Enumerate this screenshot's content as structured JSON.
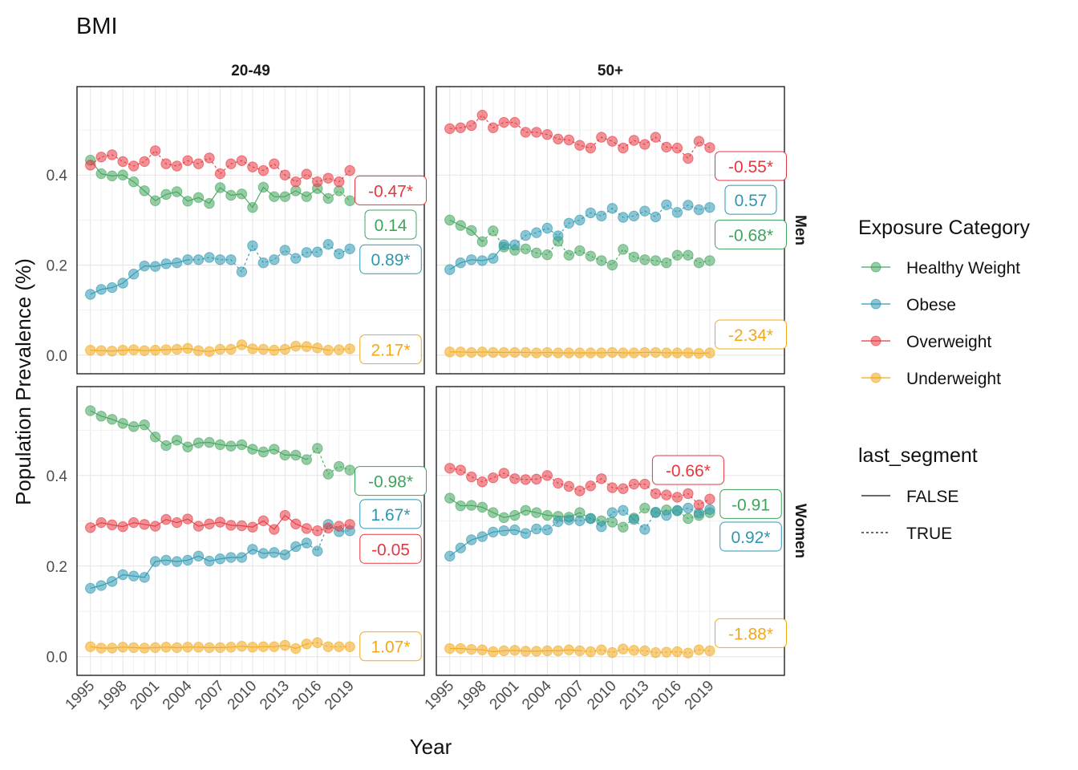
{
  "chart_data": {
    "type": "line",
    "title": "BMI",
    "xlabel": "Year",
    "ylabel": "Population Prevalence (%)",
    "x_ticks": [
      1995,
      1998,
      2001,
      2004,
      2007,
      2010,
      2013,
      2016,
      2019
    ],
    "y_ticks": [
      "0.0",
      "0.2",
      "0.4"
    ],
    "ylim": [
      -0.02,
      0.575
    ],
    "xlim": [
      1994.5,
      2019.5
    ],
    "grid": true,
    "col_facets": [
      "20-49",
      "50+"
    ],
    "row_facets": [
      "Men",
      "Women"
    ],
    "legend": {
      "position": "right",
      "color_title": "Exposure Category",
      "linetype_title": "last_segment",
      "categories": [
        {
          "name": "Healthy Weight",
          "color": "#3FA45B"
        },
        {
          "name": "Obese",
          "color": "#2C97B1"
        },
        {
          "name": "Overweight",
          "color": "#E8363F"
        },
        {
          "name": "Underweight",
          "color": "#F2A81A"
        }
      ],
      "linetypes": [
        {
          "label": "FALSE",
          "dash": "solid"
        },
        {
          "label": "TRUE",
          "dash": "dashed"
        }
      ]
    },
    "years": [
      1995,
      1996,
      1997,
      1998,
      1999,
      2000,
      2001,
      2002,
      2003,
      2004,
      2005,
      2006,
      2007,
      2008,
      2009,
      2010,
      2011,
      2012,
      2013,
      2014,
      2015,
      2016,
      2017,
      2018,
      2019
    ],
    "panels": [
      {
        "col": "20-49",
        "row": "Men",
        "series": [
          {
            "name": "Healthy Weight",
            "values": [
              0.433,
              0.403,
              0.398,
              0.4,
              0.385,
              0.365,
              0.343,
              0.357,
              0.363,
              0.342,
              0.35,
              0.337,
              0.372,
              0.355,
              0.358,
              0.328,
              0.373,
              0.352,
              0.352,
              0.365,
              0.352,
              0.37,
              0.348,
              0.365,
              0.343
            ],
            "dashed_from": 22
          },
          {
            "name": "Obese",
            "values": [
              0.135,
              0.146,
              0.15,
              0.16,
              0.18,
              0.198,
              0.197,
              0.203,
              0.205,
              0.212,
              0.212,
              0.217,
              0.212,
              0.212,
              0.185,
              0.243,
              0.205,
              0.212,
              0.233,
              0.215,
              0.228,
              0.229,
              0.246,
              0.225,
              0.236
            ],
            "dashed_from": 9
          },
          {
            "name": "Overweight",
            "values": [
              0.422,
              0.44,
              0.445,
              0.43,
              0.42,
              0.43,
              0.454,
              0.425,
              0.42,
              0.432,
              0.425,
              0.438,
              0.403,
              0.425,
              0.432,
              0.418,
              0.41,
              0.425,
              0.4,
              0.385,
              0.402,
              0.385,
              0.393,
              0.385,
              0.41
            ],
            "dashed_from": 0
          },
          {
            "name": "Underweight",
            "values": [
              0.011,
              0.01,
              0.009,
              0.011,
              0.012,
              0.01,
              0.011,
              0.012,
              0.013,
              0.015,
              0.01,
              0.008,
              0.013,
              0.013,
              0.023,
              0.014,
              0.013,
              0.011,
              0.013,
              0.02,
              0.019,
              0.016,
              0.011,
              0.012,
              0.014
            ],
            "dashed_from": 22
          }
        ],
        "labels": [
          {
            "series": "Overweight",
            "text": "-0.47*",
            "y": 0.366
          },
          {
            "series": "Healthy Weight",
            "text": "0.14",
            "y": 0.29
          },
          {
            "series": "Obese",
            "text": "0.89*",
            "y": 0.213
          },
          {
            "series": "Underweight",
            "text": "2.17*",
            "y": 0.013
          }
        ]
      },
      {
        "col": "50+",
        "row": "Men",
        "series": [
          {
            "name": "Healthy Weight",
            "values": [
              0.3,
              0.288,
              0.277,
              0.252,
              0.276,
              0.24,
              0.233,
              0.236,
              0.227,
              0.223,
              0.253,
              0.222,
              0.232,
              0.22,
              0.21,
              0.2,
              0.235,
              0.218,
              0.212,
              0.21,
              0.205,
              0.222,
              0.222,
              0.205,
              0.21
            ],
            "dashed_from": 3
          },
          {
            "name": "Obese",
            "values": [
              0.19,
              0.205,
              0.212,
              0.21,
              0.215,
              0.245,
              0.245,
              0.266,
              0.272,
              0.282,
              0.265,
              0.293,
              0.3,
              0.316,
              0.309,
              0.326,
              0.306,
              0.309,
              0.32,
              0.307,
              0.334,
              0.317,
              0.333,
              0.323,
              0.328
            ],
            "dashed_from": 5
          },
          {
            "name": "Overweight",
            "values": [
              0.503,
              0.505,
              0.51,
              0.533,
              0.505,
              0.517,
              0.517,
              0.495,
              0.495,
              0.49,
              0.48,
              0.478,
              0.466,
              0.46,
              0.484,
              0.475,
              0.46,
              0.477,
              0.468,
              0.484,
              0.462,
              0.46,
              0.437,
              0.475,
              0.461
            ],
            "dashed_from": 0
          },
          {
            "name": "Underweight",
            "values": [
              0.007,
              0.007,
              0.006,
              0.007,
              0.006,
              0.006,
              0.006,
              0.006,
              0.005,
              0.006,
              0.005,
              0.005,
              0.005,
              0.005,
              0.005,
              0.006,
              0.005,
              0.005,
              0.006,
              0.006,
              0.005,
              0.005,
              0.005,
              0.004,
              0.005
            ],
            "dashed_from": 24
          }
        ],
        "labels": [
          {
            "series": "Overweight",
            "text": "-0.55*",
            "y": 0.42
          },
          {
            "series": "Obese",
            "text": "0.57",
            "y": 0.345
          },
          {
            "series": "Healthy Weight",
            "text": "-0.68*",
            "y": 0.268
          },
          {
            "series": "Underweight",
            "text": "-2.34*",
            "y": 0.046
          }
        ]
      },
      {
        "col": "20-49",
        "row": "Women",
        "series": [
          {
            "name": "Healthy Weight",
            "values": [
              0.543,
              0.531,
              0.524,
              0.515,
              0.508,
              0.512,
              0.485,
              0.466,
              0.478,
              0.463,
              0.472,
              0.473,
              0.468,
              0.465,
              0.468,
              0.458,
              0.452,
              0.458,
              0.445,
              0.445,
              0.435,
              0.46,
              0.403,
              0.42,
              0.412
            ],
            "dashed_from": 20
          },
          {
            "name": "Obese",
            "values": [
              0.151,
              0.157,
              0.166,
              0.181,
              0.178,
              0.175,
              0.21,
              0.213,
              0.21,
              0.213,
              0.222,
              0.211,
              0.216,
              0.219,
              0.219,
              0.237,
              0.228,
              0.23,
              0.225,
              0.243,
              0.251,
              0.233,
              0.292,
              0.276,
              0.278
            ],
            "dashed_from": 20
          },
          {
            "name": "Overweight",
            "values": [
              0.285,
              0.296,
              0.291,
              0.287,
              0.296,
              0.292,
              0.288,
              0.303,
              0.296,
              0.304,
              0.288,
              0.293,
              0.297,
              0.29,
              0.289,
              0.286,
              0.3,
              0.281,
              0.312,
              0.293,
              0.283,
              0.278,
              0.284,
              0.288,
              0.292
            ],
            "dashed_from": 20
          },
          {
            "name": "Underweight",
            "values": [
              0.022,
              0.019,
              0.019,
              0.021,
              0.02,
              0.019,
              0.02,
              0.021,
              0.02,
              0.021,
              0.021,
              0.02,
              0.02,
              0.021,
              0.023,
              0.021,
              0.022,
              0.022,
              0.025,
              0.018,
              0.028,
              0.031,
              0.022,
              0.022,
              0.022
            ],
            "dashed_from": 20
          }
        ],
        "labels": [
          {
            "series": "Healthy Weight",
            "text": "-0.98*",
            "y": 0.388
          },
          {
            "series": "Obese",
            "text": "1.67*",
            "y": 0.315
          },
          {
            "series": "Overweight",
            "text": "-0.05",
            "y": 0.238
          },
          {
            "series": "Underweight",
            "text": "1.07*",
            "y": 0.023
          }
        ]
      },
      {
        "col": "50+",
        "row": "Women",
        "series": [
          {
            "name": "Healthy Weight",
            "values": [
              0.35,
              0.333,
              0.334,
              0.33,
              0.318,
              0.307,
              0.312,
              0.323,
              0.318,
              0.312,
              0.31,
              0.308,
              0.318,
              0.305,
              0.3,
              0.297,
              0.286,
              0.306,
              0.328,
              0.318,
              0.324,
              0.322,
              0.305,
              0.312,
              0.318
            ],
            "dashed_from": 12
          },
          {
            "name": "Obese",
            "values": [
              0.222,
              0.24,
              0.258,
              0.265,
              0.275,
              0.278,
              0.28,
              0.272,
              0.282,
              0.28,
              0.298,
              0.302,
              0.3,
              0.305,
              0.287,
              0.318,
              0.323,
              0.303,
              0.281,
              0.319,
              0.312,
              0.323,
              0.328,
              0.317,
              0.325
            ],
            "dashed_from": 7
          },
          {
            "name": "Overweight",
            "values": [
              0.416,
              0.412,
              0.397,
              0.386,
              0.395,
              0.405,
              0.393,
              0.391,
              0.392,
              0.4,
              0.383,
              0.376,
              0.366,
              0.377,
              0.393,
              0.373,
              0.371,
              0.381,
              0.381,
              0.36,
              0.357,
              0.352,
              0.36,
              0.335,
              0.348
            ],
            "dashed_from": 0
          },
          {
            "name": "Underweight",
            "values": [
              0.018,
              0.018,
              0.016,
              0.015,
              0.011,
              0.013,
              0.014,
              0.012,
              0.012,
              0.013,
              0.013,
              0.015,
              0.013,
              0.011,
              0.015,
              0.009,
              0.017,
              0.014,
              0.013,
              0.009,
              0.01,
              0.011,
              0.008,
              0.015,
              0.013
            ],
            "dashed_from": 12
          }
        ],
        "labels": [
          {
            "series": "Overweight",
            "text": "-0.66*",
            "y": 0.412,
            "x": 2017
          },
          {
            "series": "Healthy Weight",
            "text": "-0.91",
            "y": 0.337
          },
          {
            "series": "Obese",
            "text": "0.92*",
            "y": 0.265
          },
          {
            "series": "Underweight",
            "text": "-1.88*",
            "y": 0.052
          }
        ]
      }
    ]
  }
}
